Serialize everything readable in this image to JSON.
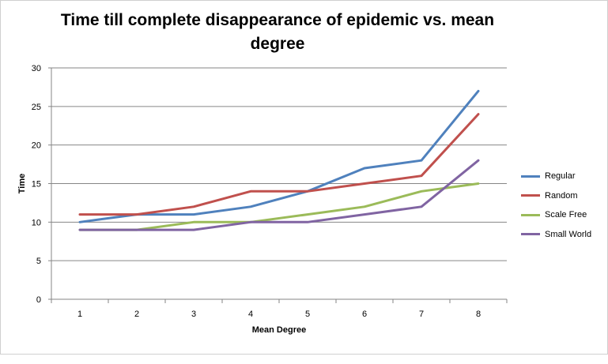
{
  "chart_data": {
    "type": "line",
    "title": "Time till complete disappearance of epidemic vs. mean degree",
    "xlabel": "Mean Degree",
    "ylabel": "Time",
    "x": [
      1,
      2,
      3,
      4,
      5,
      6,
      7,
      8
    ],
    "ylim": [
      0,
      30
    ],
    "yticks": [
      0,
      5,
      10,
      15,
      20,
      25,
      30
    ],
    "grid": true,
    "legend_position": "right",
    "series": [
      {
        "name": "Regular",
        "color": "#4f81bd",
        "values": [
          10,
          11,
          11,
          12,
          14,
          17,
          18,
          27
        ]
      },
      {
        "name": "Random",
        "color": "#c0504d",
        "values": [
          11,
          11,
          12,
          14,
          14,
          15,
          16,
          24
        ]
      },
      {
        "name": "Scale Free",
        "color": "#9bbb59",
        "values": [
          9,
          9,
          10,
          10,
          11,
          12,
          14,
          15
        ]
      },
      {
        "name": "Small World",
        "color": "#8064a2",
        "values": [
          9,
          9,
          9,
          10,
          10,
          11,
          12,
          18
        ]
      }
    ]
  }
}
